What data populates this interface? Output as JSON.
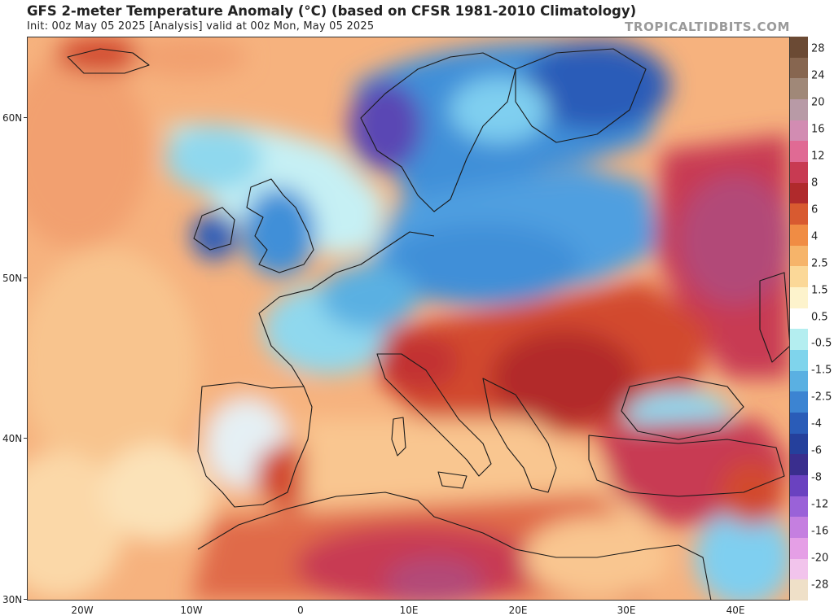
{
  "header": {
    "title": "GFS 2-meter Temperature Anomaly (°C) (based on CFSR 1981-2010 Climatology)",
    "subtitle": "Init: 00z May 05 2025   [Analysis]   valid at 00z Mon, May 05 2025",
    "credit": "TROPICALTIDBITS.COM"
  },
  "axes": {
    "lat_labels": [
      "60N",
      "50N",
      "40N",
      "30N"
    ],
    "lon_labels": [
      "20W",
      "10W",
      "0",
      "10E",
      "20E",
      "30E",
      "40E"
    ]
  },
  "colorbar": {
    "labels": [
      "28",
      "24",
      "20",
      "16",
      "12",
      "8",
      "6",
      "4",
      "2.5",
      "1.5",
      "0.5",
      "-0.5",
      "-1.5",
      "-2.5",
      "-4",
      "-6",
      "-8",
      "-12",
      "-16",
      "-20",
      "-28"
    ],
    "colors": [
      "#6b4a34",
      "#876650",
      "#a08878",
      "#b89aa6",
      "#d28cb2",
      "#e06a94",
      "#c83a52",
      "#b02a2c",
      "#d85a30",
      "#f08c44",
      "#f6b46a",
      "#fbd898",
      "#fdf3cc",
      "#ffffff",
      "#b4eef0",
      "#7fd4ec",
      "#5ab0e2",
      "#3c84d2",
      "#2a5cb8",
      "#25409c",
      "#3a2e8e",
      "#6a42c0",
      "#9a62d8",
      "#c57fe0",
      "#e59fe6",
      "#f2c4ec",
      "#efe0c8"
    ]
  },
  "map_colors": {
    "warm_light": "#f8c08a",
    "warm": "#ef8a4c",
    "hot": "#d2492e",
    "very_hot": "#b22a2a",
    "extreme": "#b24a78",
    "cool_light": "#bff0f4",
    "cool": "#7fcff0",
    "cold": "#3f8fd8",
    "very_cold": "#2a5cb8",
    "purple": "#5a46b4"
  }
}
